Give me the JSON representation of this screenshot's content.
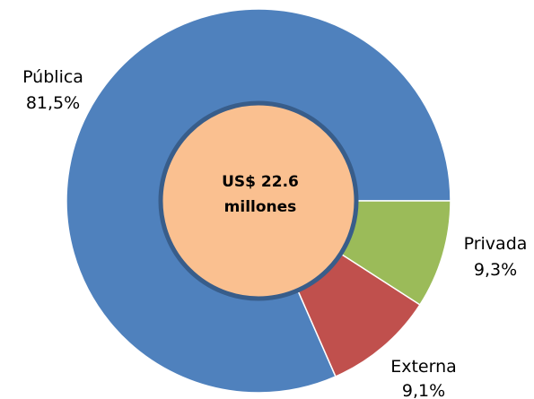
{
  "chart_data": {
    "type": "pie",
    "variant": "donut",
    "title": "",
    "center_label": [
      "US$ 22.6",
      "millones"
    ],
    "slices": [
      {
        "name": "Pública",
        "value": 81.5,
        "value_label": "81,5%",
        "color": "#4F81BD"
      },
      {
        "name": "Privada",
        "value": 9.3,
        "value_label": "9,3%",
        "color": "#C0504D"
      },
      {
        "name": "Externa",
        "value": 9.1,
        "value_label": "9,1%",
        "color": "#9BBB59"
      }
    ],
    "center_color": "#FAC090",
    "center_border_color": "#385D8A",
    "legend": "none"
  }
}
